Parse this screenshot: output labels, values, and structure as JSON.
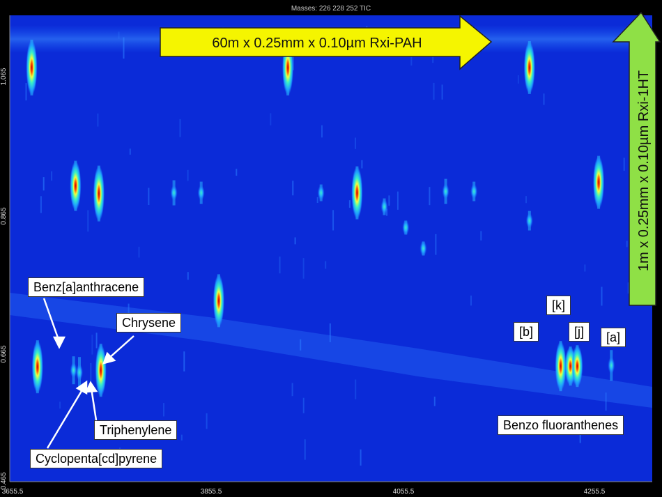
{
  "header": {
    "masses_label": "Masses:  226 228 252 TIC"
  },
  "chart_data": {
    "type": "heatmap",
    "title": "",
    "xlabel": "",
    "ylabel": "",
    "x_ticks": [
      "3655.5",
      "3855.5",
      "4055.5",
      "4255.5"
    ],
    "y_ticks": [
      "1.065",
      "0.865",
      "0.665",
      "0.465"
    ],
    "xlim": [
      3655.5,
      4315
    ],
    "ylim": [
      0.465,
      1.135
    ],
    "colorscale": [
      "#0a2fe0",
      "#1fa3ff",
      "#3cf0c0",
      "#e8ff40",
      "#ff7a00",
      "#c80000"
    ],
    "background_color": "#0b2bd8",
    "peaks": [
      {
        "x": 3678,
        "y": 1.06,
        "i": 1.0
      },
      {
        "x": 3723,
        "y": 0.89,
        "i": 0.9
      },
      {
        "x": 3747,
        "y": 0.879,
        "i": 1.0
      },
      {
        "x": 3684,
        "y": 0.63,
        "i": 0.95
      },
      {
        "x": 3721,
        "y": 0.625,
        "i": 0.5
      },
      {
        "x": 3727,
        "y": 0.622,
        "i": 0.55
      },
      {
        "x": 3749,
        "y": 0.625,
        "i": 0.95
      },
      {
        "x": 3870,
        "y": 0.725,
        "i": 0.95
      },
      {
        "x": 3941,
        "y": 1.06,
        "i": 1.0
      },
      {
        "x": 4012,
        "y": 0.88,
        "i": 0.95
      },
      {
        "x": 4189,
        "y": 1.06,
        "i": 0.95
      },
      {
        "x": 4260,
        "y": 0.895,
        "i": 0.95
      },
      {
        "x": 4221,
        "y": 0.631,
        "i": 0.9
      },
      {
        "x": 4231,
        "y": 0.631,
        "i": 0.7
      },
      {
        "x": 4238,
        "y": 0.631,
        "i": 0.75
      },
      {
        "x": 4273,
        "y": 0.632,
        "i": 0.55
      },
      {
        "x": 3824,
        "y": 0.88,
        "i": 0.45
      },
      {
        "x": 3852,
        "y": 0.88,
        "i": 0.4
      },
      {
        "x": 4103,
        "y": 0.882,
        "i": 0.45
      },
      {
        "x": 4132,
        "y": 0.882,
        "i": 0.35
      },
      {
        "x": 4189,
        "y": 0.84,
        "i": 0.35
      },
      {
        "x": 3975,
        "y": 0.88,
        "i": 0.3
      },
      {
        "x": 4040,
        "y": 0.86,
        "i": 0.3
      },
      {
        "x": 4062,
        "y": 0.83,
        "i": 0.25
      },
      {
        "x": 4080,
        "y": 0.8,
        "i": 0.25
      }
    ],
    "annotations": {
      "column_1": "60m x 0.25mm x 0.10µm Rxi-PAH",
      "column_2": "1m x 0.25mm x 0.10µm Rxi-1HT",
      "compounds": {
        "benz_a_anthracene": "Benz[a]anthracene",
        "chrysene": "Chrysene",
        "triphenylene": "Triphenylene",
        "cyclopenta_cd_pyrene": "Cyclopenta[cd]pyrene",
        "benzo_fluoranthenes": "Benzo fluoranthenes",
        "bf_b": "[b]",
        "bf_k": "[k]",
        "bf_j": "[j]",
        "bf_a": "[a]"
      }
    }
  },
  "colors": {
    "arrow_fill": "#f5f500",
    "arrow2_fill": "#8fe046",
    "arrow_stroke": "#222222"
  }
}
